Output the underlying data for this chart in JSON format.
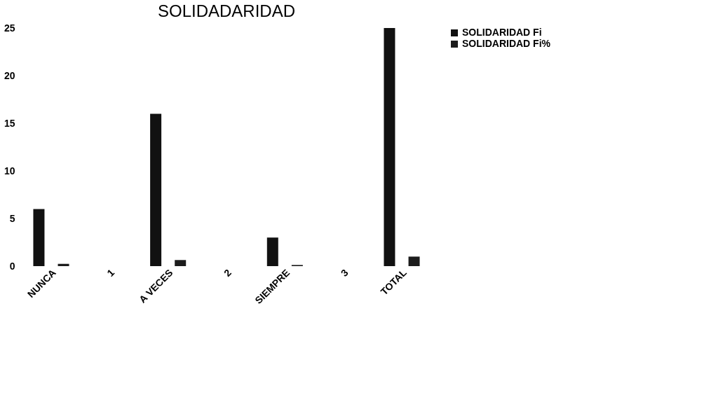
{
  "chart_data": {
    "type": "bar",
    "title": "SOLIDADARIDAD",
    "categories": [
      "NUNCA",
      "1",
      "A VECES",
      "2",
      "SIEMPRE",
      "3",
      "TOTAL"
    ],
    "series": [
      {
        "name": "SOLIDARIDAD Fi",
        "color": "#111111",
        "values": [
          6,
          null,
          16,
          null,
          3,
          null,
          25
        ]
      },
      {
        "name": "SOLIDARIDAD Fi%",
        "color": "#1c1c1c",
        "values": [
          0.24,
          null,
          0.64,
          null,
          0.12,
          null,
          1
        ]
      }
    ],
    "ylim": [
      0,
      25
    ],
    "yticks": [
      0,
      5,
      10,
      15,
      20,
      25
    ],
    "grid": false,
    "legend": "right"
  }
}
